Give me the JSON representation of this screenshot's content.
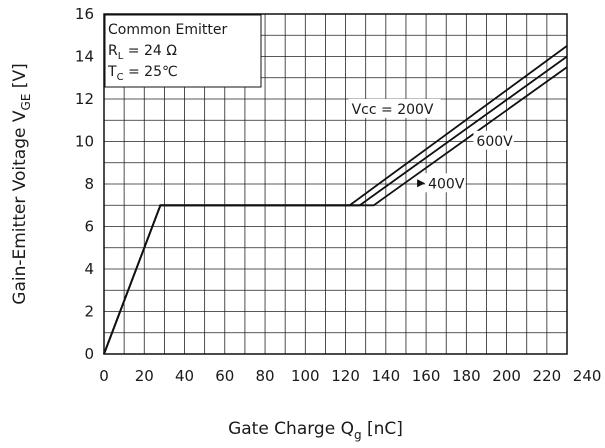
{
  "chart_data": {
    "type": "line",
    "title": "",
    "xlabel": "Gate Charge  Q",
    "xlabel_sub": "g",
    "xlabel_unit": " [nC]",
    "ylabel": "Gain-Emitter Voitage  V",
    "ylabel_sub": "GE",
    "ylabel_unit": " [V]",
    "xlim": [
      0,
      230
    ],
    "ylim": [
      0,
      16
    ],
    "x_ticks": [
      0,
      20,
      40,
      60,
      80,
      100,
      120,
      140,
      160,
      180,
      200,
      220,
      240
    ],
    "x_tick_labels": [
      "0",
      "20",
      "40",
      "60",
      "80",
      "100",
      "120",
      "140",
      "160",
      "180",
      "200",
      "220",
      "240"
    ],
    "y_ticks": [
      0,
      2,
      4,
      6,
      8,
      10,
      12,
      14,
      16
    ],
    "y_tick_labels": [
      "0",
      "2",
      "4",
      "6",
      "8",
      "10",
      "12",
      "14",
      "16"
    ],
    "grid": true,
    "legend": {
      "lines": [
        {
          "text": "Common Emitter"
        },
        {
          "text": "R",
          "sub": "L",
          "rest": " = 24 Ω"
        },
        {
          "text": "T",
          "sub": "C",
          "rest": " = 25℃"
        }
      ]
    },
    "series": [
      {
        "name": "Vcc = 200V",
        "x": [
          0,
          28,
          122,
          230
        ],
        "y": [
          0,
          7,
          7,
          14.5
        ]
      },
      {
        "name": "400V",
        "x": [
          0,
          28,
          127,
          230
        ],
        "y": [
          0,
          7,
          7,
          14.0
        ]
      },
      {
        "name": "600V",
        "x": [
          0,
          28,
          134,
          230
        ],
        "y": [
          0,
          7,
          7,
          13.5
        ]
      }
    ],
    "series_labels": [
      {
        "text": "Vcc = 200V",
        "x": 123,
        "y": 11.3
      },
      {
        "text": "600V",
        "x": 185,
        "y": 9.8
      },
      {
        "text": "400V",
        "x": 161,
        "y": 7.8
      }
    ]
  }
}
